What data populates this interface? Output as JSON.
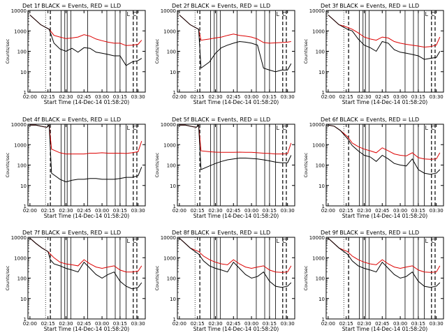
{
  "figure": {
    "ylabel": "Counts/sec",
    "xlabel": "Start Time (14-Dec-14 01:58:20)",
    "x_ticks": [
      "02:00",
      "02:15",
      "02:30",
      "02:45",
      "03:00",
      "03:15",
      "03:30"
    ],
    "y_ticks": [
      "1",
      "10",
      "100",
      "1000",
      "10000"
    ]
  },
  "chart_data": [
    {
      "type": "line",
      "title": "Det 1f BLACK = Events, RED = LLD",
      "xlabel": "Start Time (14-Dec-14 01:58:20)",
      "ylabel": "Counts/sec",
      "x": [
        "02:00",
        "02:09",
        "02:16",
        "02:20",
        "02:25",
        "02:30",
        "02:35",
        "02:40",
        "02:45",
        "02:50",
        "02:55",
        "03:00",
        "03:05",
        "03:10",
        "03:15",
        "03:20",
        "03:25",
        "03:30",
        "03:33"
      ],
      "y_scale": "log",
      "ylim": [
        1,
        10000
      ],
      "xlim": [
        "01:58:20",
        "03:36"
      ],
      "series": [
        {
          "name": "BLACK = Events",
          "color": "#000000",
          "values": [
            6000,
            2000,
            1200,
            250,
            130,
            100,
            140,
            90,
            150,
            140,
            90,
            80,
            70,
            60,
            60,
            20,
            30,
            35,
            45
          ]
        },
        {
          "name": "RED = LLD",
          "color": "#dd0000",
          "values": [
            6000,
            2000,
            1200,
            600,
            500,
            420,
            450,
            500,
            650,
            550,
            400,
            330,
            280,
            250,
            250,
            190,
            200,
            220,
            350
          ]
        }
      ],
      "markers": {
        "dotted": [
          "02:13"
        ],
        "dashed": [
          "02:17",
          "03:26",
          "03:29"
        ],
        "solid": [
          "02:26",
          "02:29",
          "02:31",
          "02:34",
          "02:48",
          "03:04",
          "03:11",
          "03:15",
          "03:20"
        ]
      },
      "annotations": [
        {
          "x": "03:20",
          "text": "L"
        },
        {
          "x": "03:25",
          "text": "C"
        }
      ]
    },
    {
      "type": "line",
      "title": "Det 2f BLACK = Events, RED = LLD",
      "xlabel": "Start Time (14-Dec-14 01:58:20)",
      "ylabel": "Counts/sec",
      "x": [
        "02:00",
        "02:09",
        "02:16",
        "02:18",
        "02:25",
        "02:30",
        "02:35",
        "02:40",
        "02:45",
        "02:50",
        "02:55",
        "03:00",
        "03:05",
        "03:10",
        "03:15",
        "03:20",
        "03:25",
        "03:30",
        "03:33"
      ],
      "y_scale": "log",
      "ylim": [
        1,
        10000
      ],
      "xlim": [
        "01:58:20",
        "03:36"
      ],
      "series": [
        {
          "name": "BLACK = Events",
          "color": "#000000",
          "values": [
            6000,
            2000,
            1200,
            15,
            30,
            80,
            150,
            200,
            250,
            300,
            280,
            250,
            200,
            15,
            12,
            10,
            12,
            12,
            25
          ]
        },
        {
          "name": "RED = LLD",
          "color": "#dd0000",
          "values": [
            6000,
            2000,
            1200,
            350,
            400,
            450,
            500,
            600,
            700,
            600,
            550,
            500,
            400,
            270,
            250,
            260,
            270,
            280,
            300
          ]
        }
      ],
      "markers": {
        "dotted": [
          "02:13"
        ],
        "dashed": [
          "02:17",
          "03:26",
          "03:29"
        ],
        "solid": [
          "02:26",
          "02:29",
          "02:31",
          "02:34",
          "02:48",
          "03:04",
          "03:11",
          "03:15",
          "03:20"
        ]
      },
      "annotations": [
        {
          "x": "03:20",
          "text": "L"
        },
        {
          "x": "03:25",
          "text": "C"
        }
      ]
    },
    {
      "type": "line",
      "title": "Det 3f BLACK = Events, RED = LLD",
      "xlabel": "Start Time (14-Dec-14 01:58:20)",
      "ylabel": "Counts/sec",
      "x": [
        "02:00",
        "02:09",
        "02:16",
        "02:20",
        "02:25",
        "02:30",
        "02:35",
        "02:40",
        "02:45",
        "02:50",
        "02:55",
        "03:00",
        "03:05",
        "03:10",
        "03:15",
        "03:20",
        "03:25",
        "03:30",
        "03:33"
      ],
      "y_scale": "log",
      "ylim": [
        1,
        10000
      ],
      "xlim": [
        "01:58:20",
        "03:36"
      ],
      "series": [
        {
          "name": "BLACK = Events",
          "color": "#000000",
          "values": [
            6000,
            2000,
            1200,
            1000,
            400,
            200,
            150,
            100,
            300,
            250,
            120,
            90,
            80,
            70,
            60,
            40,
            45,
            50,
            100
          ]
        },
        {
          "name": "RED = LLD",
          "color": "#dd0000",
          "values": [
            6000,
            2000,
            1500,
            1200,
            800,
            500,
            400,
            350,
            500,
            450,
            300,
            250,
            220,
            200,
            180,
            160,
            170,
            200,
            500
          ]
        }
      ],
      "markers": {
        "dotted": [
          "02:13"
        ],
        "dashed": [
          "02:17",
          "03:26",
          "03:29"
        ],
        "solid": [
          "02:26",
          "02:29",
          "02:31",
          "02:34",
          "02:48",
          "03:04",
          "03:11",
          "03:15",
          "03:20"
        ]
      },
      "annotations": [
        {
          "x": "03:20",
          "text": "L"
        },
        {
          "x": "03:25",
          "text": "C"
        }
      ]
    },
    {
      "type": "line",
      "title": "Det 4f BLACK = Events, RED = LLD",
      "xlabel": "Start Time (14-Dec-14 01:58:20)",
      "ylabel": "Counts/sec",
      "x": [
        "02:00",
        "02:05",
        "02:09",
        "02:14",
        "02:16",
        "02:18",
        "02:25",
        "02:30",
        "02:35",
        "02:40",
        "02:45",
        "02:50",
        "02:55",
        "03:00",
        "03:05",
        "03:10",
        "03:15",
        "03:20",
        "03:25",
        "03:30",
        "03:33"
      ],
      "y_scale": "log",
      "ylim": [
        1,
        10000
      ],
      "xlim": [
        "01:58:20",
        "03:36"
      ],
      "series": [
        {
          "name": "BLACK = Events",
          "color": "#000000",
          "values": [
            9000,
            9000,
            8000,
            7000,
            9000,
            40,
            20,
            15,
            18,
            20,
            20,
            22,
            22,
            20,
            20,
            20,
            22,
            25,
            25,
            30,
            80
          ]
        },
        {
          "name": "RED = LLD",
          "color": "#dd0000",
          "values": [
            9000,
            9000,
            8000,
            7000,
            9000,
            600,
            400,
            350,
            350,
            350,
            350,
            380,
            380,
            400,
            380,
            380,
            380,
            370,
            400,
            450,
            1500
          ]
        }
      ],
      "markers": {
        "dotted": [
          "02:13"
        ],
        "dashed": [
          "02:17",
          "03:26",
          "03:29"
        ],
        "solid": [
          "02:26",
          "02:29",
          "02:31",
          "02:34",
          "02:48",
          "03:04",
          "03:11",
          "03:15",
          "03:20"
        ]
      },
      "annotations": [
        {
          "x": "03:20",
          "text": "L"
        },
        {
          "x": "03:25",
          "text": "C"
        }
      ]
    },
    {
      "type": "line",
      "title": "Det 5f BLACK = Events, RED = LLD",
      "xlabel": "Start Time (14-Dec-14 01:58:20)",
      "ylabel": "Counts/sec",
      "x": [
        "02:00",
        "02:05",
        "02:09",
        "02:14",
        "02:16",
        "02:18",
        "02:25",
        "02:30",
        "02:35",
        "02:40",
        "02:45",
        "02:50",
        "02:55",
        "03:00",
        "03:05",
        "03:10",
        "03:15",
        "03:20",
        "03:25",
        "03:30",
        "03:33"
      ],
      "y_scale": "log",
      "ylim": [
        1,
        10000
      ],
      "xlim": [
        "01:58:20",
        "03:36"
      ],
      "series": [
        {
          "name": "BLACK = Events",
          "color": "#000000",
          "values": [
            9000,
            9000,
            8000,
            7000,
            9000,
            60,
            90,
            120,
            150,
            180,
            200,
            220,
            220,
            210,
            200,
            180,
            160,
            140,
            130,
            130,
            300
          ]
        },
        {
          "name": "RED = LLD",
          "color": "#dd0000",
          "values": [
            9000,
            9000,
            8000,
            7000,
            9000,
            500,
            450,
            430,
            420,
            420,
            420,
            430,
            420,
            420,
            400,
            380,
            370,
            350,
            350,
            360,
            1200
          ]
        }
      ],
      "markers": {
        "dotted": [
          "02:13"
        ],
        "dashed": [
          "02:17",
          "03:26",
          "03:29"
        ],
        "solid": [
          "02:26",
          "02:29",
          "02:31",
          "02:34",
          "02:48",
          "03:04",
          "03:11",
          "03:15",
          "03:20"
        ]
      },
      "annotations": [
        {
          "x": "03:20",
          "text": "L"
        },
        {
          "x": "03:25",
          "text": "C"
        }
      ]
    },
    {
      "type": "line",
      "title": "Det 6f BLACK = Events, RED = LLD",
      "xlabel": "Start Time (14-Dec-14 01:58:20)",
      "ylabel": "Counts/sec",
      "x": [
        "02:00",
        "02:05",
        "02:10",
        "02:16",
        "02:20",
        "02:25",
        "02:30",
        "02:35",
        "02:40",
        "02:45",
        "02:50",
        "02:55",
        "03:00",
        "03:05",
        "03:10",
        "03:15",
        "03:20",
        "03:25",
        "03:30",
        "03:33"
      ],
      "y_scale": "log",
      "ylim": [
        1,
        10000
      ],
      "xlim": [
        "01:58:20",
        "03:36"
      ],
      "series": [
        {
          "name": "BLACK = Events",
          "color": "#000000",
          "values": [
            9000,
            8000,
            5000,
            2000,
            900,
            500,
            300,
            250,
            150,
            300,
            200,
            120,
            100,
            90,
            200,
            60,
            40,
            35,
            40,
            60
          ]
        },
        {
          "name": "RED = LLD",
          "color": "#dd0000",
          "values": [
            9000,
            8000,
            5000,
            2500,
            1200,
            800,
            600,
            500,
            400,
            700,
            500,
            350,
            300,
            280,
            400,
            230,
            200,
            190,
            200,
            400
          ]
        }
      ],
      "markers": {
        "dotted": [
          "02:13"
        ],
        "dashed": [
          "02:17",
          "03:26",
          "03:29"
        ],
        "solid": [
          "02:26",
          "02:29",
          "02:31",
          "02:34",
          "02:48",
          "03:04",
          "03:11",
          "03:15",
          "03:20"
        ]
      },
      "annotations": [
        {
          "x": "03:20",
          "text": "L"
        },
        {
          "x": "03:25",
          "text": "C"
        }
      ]
    },
    {
      "type": "line",
      "title": "Det 7f BLACK = Events, RED = LLD",
      "xlabel": "Start Time (14-Dec-14 01:58:20)",
      "ylabel": "Counts/sec",
      "x": [
        "02:00",
        "02:05",
        "02:10",
        "02:15",
        "02:17",
        "02:20",
        "02:25",
        "02:30",
        "02:35",
        "02:40",
        "02:45",
        "02:50",
        "02:55",
        "03:00",
        "03:05",
        "03:10",
        "03:15",
        "03:20",
        "03:25",
        "03:30",
        "03:33"
      ],
      "y_scale": "log",
      "ylim": [
        1,
        10000
      ],
      "xlim": [
        "01:58:20",
        "03:36"
      ],
      "series": [
        {
          "name": "BLACK = Events",
          "color": "#000000",
          "values": [
            9000,
            5000,
            3000,
            2000,
            800,
            500,
            400,
            300,
            250,
            200,
            600,
            300,
            150,
            100,
            150,
            200,
            70,
            40,
            30,
            35,
            60
          ]
        },
        {
          "name": "RED = LLD",
          "color": "#dd0000",
          "values": [
            9000,
            5000,
            3000,
            2000,
            1500,
            1000,
            600,
            500,
            450,
            400,
            800,
            500,
            350,
            300,
            350,
            400,
            250,
            200,
            200,
            220,
            400
          ]
        }
      ],
      "markers": {
        "dotted": [
          "02:13"
        ],
        "dashed": [
          "02:17",
          "03:26",
          "03:29"
        ],
        "solid": [
          "02:26",
          "02:29",
          "02:31",
          "02:34",
          "02:48",
          "03:04",
          "03:11",
          "03:15",
          "03:20"
        ]
      },
      "annotations": [
        {
          "x": "03:20",
          "text": "L"
        },
        {
          "x": "03:25",
          "text": "C"
        }
      ]
    },
    {
      "type": "line",
      "title": "Det 8f BLACK = Events, RED = LLD",
      "xlabel": "Start Time (14-Dec-14 01:58:20)",
      "ylabel": "Counts/sec",
      "x": [
        "02:00",
        "02:09",
        "02:16",
        "02:20",
        "02:25",
        "02:30",
        "02:35",
        "02:40",
        "02:45",
        "02:50",
        "02:55",
        "03:00",
        "03:05",
        "03:10",
        "03:15",
        "03:20",
        "03:25",
        "03:30",
        "03:33"
      ],
      "y_scale": "log",
      "ylim": [
        1,
        10000
      ],
      "xlim": [
        "01:58:20",
        "03:36"
      ],
      "series": [
        {
          "name": "BLACK = Events",
          "color": "#000000",
          "values": [
            9000,
            3000,
            1500,
            700,
            400,
            300,
            250,
            200,
            600,
            300,
            150,
            100,
            120,
            200,
            70,
            40,
            35,
            40,
            60
          ]
        },
        {
          "name": "RED = LLD",
          "color": "#dd0000",
          "values": [
            9000,
            3000,
            2000,
            1200,
            800,
            600,
            500,
            450,
            800,
            500,
            350,
            300,
            350,
            400,
            250,
            200,
            190,
            200,
            400
          ]
        }
      ],
      "markers": {
        "dotted": [
          "02:13"
        ],
        "dashed": [
          "02:17",
          "03:26",
          "03:29"
        ],
        "solid": [
          "02:26",
          "02:29",
          "02:31",
          "02:34",
          "02:48",
          "03:04",
          "03:11",
          "03:15",
          "03:20"
        ]
      },
      "annotations": [
        {
          "x": "03:20",
          "text": "L"
        },
        {
          "x": "03:25",
          "text": "C"
        }
      ]
    },
    {
      "type": "line",
      "title": "Det 9f BLACK = Events, RED = LLD",
      "xlabel": "Start Time (14-Dec-14 01:58:20)",
      "ylabel": "Counts/sec",
      "x": [
        "02:00",
        "02:09",
        "02:16",
        "02:20",
        "02:25",
        "02:30",
        "02:35",
        "02:40",
        "02:45",
        "02:50",
        "02:55",
        "03:00",
        "03:05",
        "03:10",
        "03:15",
        "03:20",
        "03:25",
        "03:30",
        "03:33"
      ],
      "y_scale": "log",
      "ylim": [
        1,
        10000
      ],
      "xlim": [
        "01:58:20",
        "03:36"
      ],
      "series": [
        {
          "name": "BLACK = Events",
          "color": "#000000",
          "values": [
            9000,
            3000,
            1500,
            700,
            400,
            300,
            250,
            200,
            600,
            300,
            150,
            100,
            120,
            200,
            70,
            40,
            35,
            40,
            60
          ]
        },
        {
          "name": "RED = LLD",
          "color": "#dd0000",
          "values": [
            9000,
            3000,
            2000,
            1200,
            800,
            600,
            500,
            450,
            800,
            500,
            350,
            300,
            350,
            400,
            250,
            200,
            190,
            200,
            400
          ]
        }
      ],
      "markers": {
        "dotted": [
          "02:13"
        ],
        "dashed": [
          "02:17",
          "03:26",
          "03:29"
        ],
        "solid": [
          "02:26",
          "02:29",
          "02:31",
          "02:34",
          "02:48",
          "03:04",
          "03:11",
          "03:15",
          "03:20"
        ]
      },
      "annotations": [
        {
          "x": "03:20",
          "text": "L"
        },
        {
          "x": "03:25",
          "text": "C"
        }
      ]
    }
  ]
}
